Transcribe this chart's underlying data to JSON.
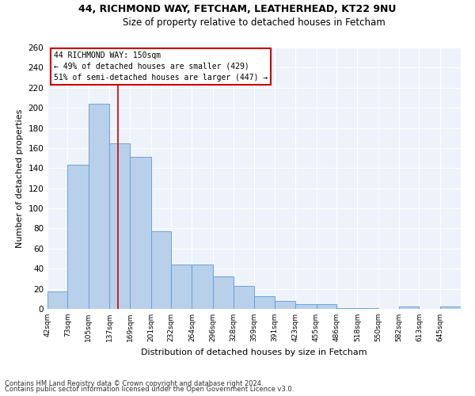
{
  "title1": "44, RICHMOND WAY, FETCHAM, LEATHERHEAD, KT22 9NU",
  "title2": "Size of property relative to detached houses in Fetcham",
  "xlabel": "Distribution of detached houses by size in Fetcham",
  "ylabel": "Number of detached properties",
  "footer1": "Contains HM Land Registry data © Crown copyright and database right 2024.",
  "footer2": "Contains public sector information licensed under the Open Government Licence v3.0.",
  "annotation_line1": "44 RICHMOND WAY: 150sqm",
  "annotation_line2": "← 49% of detached houses are smaller (429)",
  "annotation_line3": "51% of semi-detached houses are larger (447) →",
  "bar_color": "#b8d0ea",
  "bar_edge_color": "#5b9bd5",
  "ref_line_color": "#cc0000",
  "ref_line_x": 150,
  "background_color": "#eef2fb",
  "bins": [
    42,
    73,
    105,
    137,
    169,
    201,
    232,
    264,
    296,
    328,
    359,
    391,
    423,
    455,
    486,
    518,
    550,
    582,
    613,
    645,
    677
  ],
  "values": [
    17,
    143,
    204,
    165,
    151,
    77,
    44,
    44,
    32,
    23,
    13,
    8,
    5,
    5,
    1,
    1,
    0,
    2,
    0,
    2
  ],
  "ylim": [
    0,
    260
  ],
  "yticks": [
    0,
    20,
    40,
    60,
    80,
    100,
    120,
    140,
    160,
    180,
    200,
    220,
    240,
    260
  ],
  "annotation_box_color": "#ffffff",
  "annotation_box_edge": "#cc0000",
  "title1_fontsize": 9,
  "title2_fontsize": 8.5,
  "ylabel_fontsize": 8,
  "xlabel_fontsize": 8
}
